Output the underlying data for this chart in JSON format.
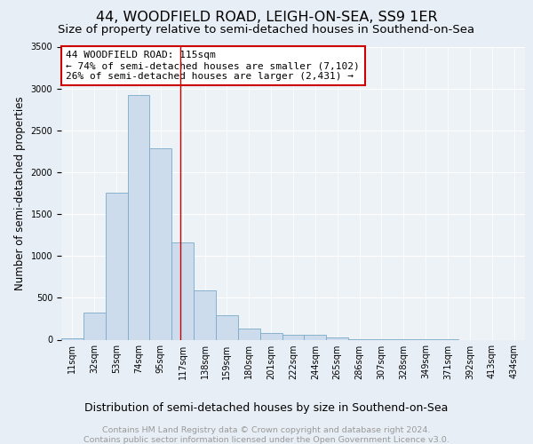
{
  "title": "44, WOODFIELD ROAD, LEIGH-ON-SEA, SS9 1ER",
  "subtitle": "Size of property relative to semi-detached houses in Southend-on-Sea",
  "xlabel": "Distribution of semi-detached houses by size in Southend-on-Sea",
  "ylabel": "Number of semi-detached properties",
  "footnote1": "Contains HM Land Registry data © Crown copyright and database right 2024.",
  "footnote2": "Contains public sector information licensed under the Open Government Licence v3.0.",
  "bin_labels": [
    "11sqm",
    "32sqm",
    "53sqm",
    "74sqm",
    "95sqm",
    "117sqm",
    "138sqm",
    "159sqm",
    "180sqm",
    "201sqm",
    "222sqm",
    "244sqm",
    "265sqm",
    "286sqm",
    "307sqm",
    "328sqm",
    "349sqm",
    "371sqm",
    "392sqm",
    "413sqm",
    "434sqm"
  ],
  "bar_values": [
    20,
    320,
    1760,
    2920,
    2290,
    1160,
    590,
    290,
    130,
    80,
    55,
    55,
    30,
    5,
    3,
    2,
    1,
    1,
    0,
    0,
    0
  ],
  "bar_color": "#cddcec",
  "bar_edge_color": "#7aaac8",
  "vline_color": "#cc0000",
  "annotation_line1": "44 WOODFIELD ROAD: 115sqm",
  "annotation_line2": "← 74% of semi-detached houses are smaller (7,102)",
  "annotation_line3": "26% of semi-detached houses are larger (2,431) →",
  "annotation_box_color": "#ffffff",
  "annotation_box_edge": "#cc0000",
  "ylim": [
    0,
    3500
  ],
  "yticks": [
    0,
    500,
    1000,
    1500,
    2000,
    2500,
    3000,
    3500
  ],
  "background_color": "#e8eef5",
  "plot_background": "#edf2f7",
  "title_fontsize": 11.5,
  "subtitle_fontsize": 9.5,
  "ylabel_fontsize": 8.5,
  "xlabel_fontsize": 9,
  "tick_fontsize": 7,
  "annotation_fontsize": 8,
  "footnote_fontsize": 6.8
}
